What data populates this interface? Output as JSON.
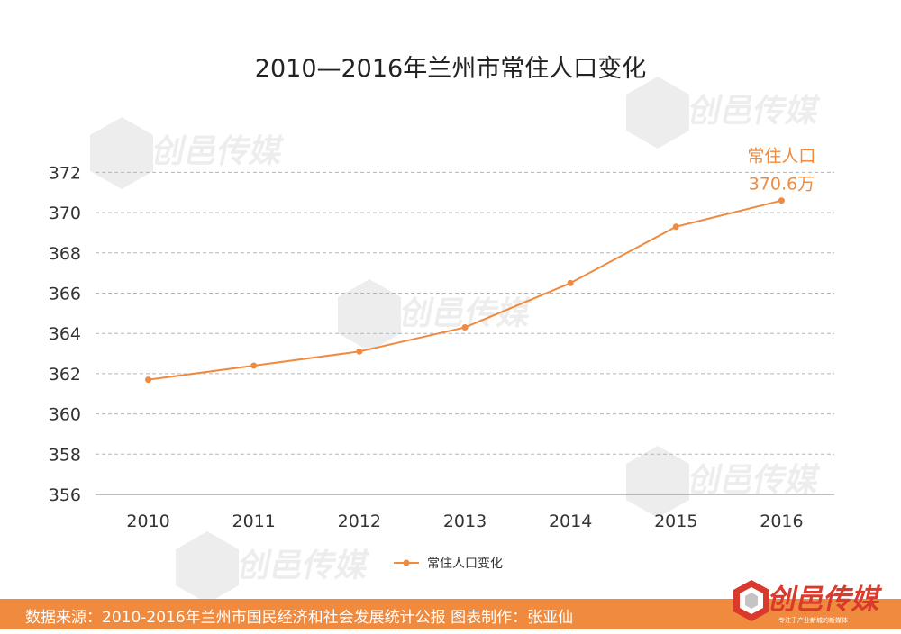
{
  "chart_data": {
    "type": "line",
    "title": "2010—2016年兰州市常住人口变化",
    "categories": [
      "2010",
      "2011",
      "2012",
      "2013",
      "2014",
      "2015",
      "2016"
    ],
    "series": [
      {
        "name": "常住人口变化",
        "values": [
          361.7,
          362.4,
          363.1,
          364.3,
          366.5,
          369.3,
          370.6
        ]
      }
    ],
    "ylim": [
      356,
      373
    ],
    "yticks": [
      "356",
      "358",
      "360",
      "362",
      "364",
      "366",
      "368",
      "370",
      "372"
    ],
    "grid": true,
    "legend": "bottom",
    "annotation": {
      "line1": "常住人口",
      "line2": "370.6万"
    },
    "line_color": "#ef8a3f"
  },
  "footer": {
    "source": "数据来源：2010-2016年兰州市国民经济和社会发展统计公报  图表制作：张亚仙"
  },
  "brand": {
    "name": "创邑传媒",
    "tagline": "专注于产业新城的新媒体"
  }
}
